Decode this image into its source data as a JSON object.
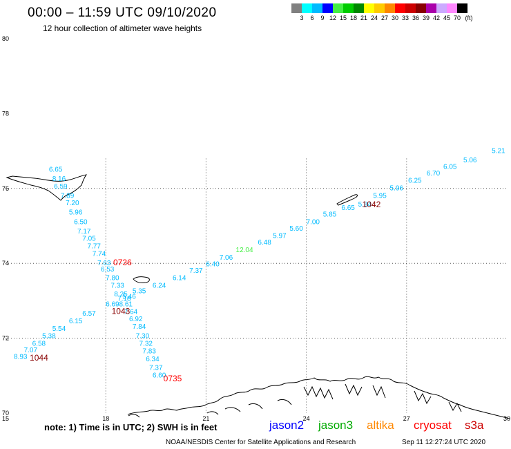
{
  "header": {
    "title": "00:00 – 11:59 UTC 09/10/2020",
    "subtitle": "12 hour collection of altimeter wave heights"
  },
  "color_scale": {
    "labels": [
      "3",
      "6",
      "9",
      "12",
      "15",
      "18",
      "21",
      "24",
      "27",
      "30",
      "33",
      "36",
      "39",
      "42",
      "45",
      "70",
      "(ft)"
    ],
    "colors": [
      "#808080",
      "#00ffff",
      "#00bbff",
      "#0000ff",
      "#44ee44",
      "#00cc00",
      "#008800",
      "#ffff00",
      "#ffcc00",
      "#ff8800",
      "#ff0000",
      "#cc0000",
      "#880000",
      "#aa00aa",
      "#ccaaff",
      "#ff88ff",
      "#000000"
    ]
  },
  "axes": {
    "lon_labels": [
      "15",
      "18",
      "21",
      "24",
      "27",
      "30"
    ],
    "lat_labels": [
      "80",
      "78",
      "76",
      "74",
      "72",
      "70"
    ]
  },
  "chart_data": {
    "type": "scatter",
    "x_axis": "longitude (E)",
    "y_axis": "latitude (N)",
    "xlim": [
      15,
      30
    ],
    "ylim": [
      70,
      80
    ],
    "grid": true,
    "points": [
      {
        "lon": 16.5,
        "lat": 76.45,
        "text": "6.65",
        "color": "#00bbff"
      },
      {
        "lon": 16.6,
        "lat": 76.2,
        "text": "8.16",
        "color": "#00bbff"
      },
      {
        "lon": 16.65,
        "lat": 76.0,
        "text": "6.59",
        "color": "#00bbff"
      },
      {
        "lon": 16.85,
        "lat": 75.75,
        "text": "7.89",
        "color": "#00bbff"
      },
      {
        "lon": 17.0,
        "lat": 75.55,
        "text": "7.20",
        "color": "#00bbff"
      },
      {
        "lon": 17.1,
        "lat": 75.3,
        "text": "5.96",
        "color": "#00bbff"
      },
      {
        "lon": 17.25,
        "lat": 75.05,
        "text": "6.50",
        "color": "#00bbff"
      },
      {
        "lon": 17.35,
        "lat": 74.8,
        "text": "7.17",
        "color": "#00bbff"
      },
      {
        "lon": 17.5,
        "lat": 74.6,
        "text": "7.05",
        "color": "#00bbff"
      },
      {
        "lon": 17.65,
        "lat": 74.4,
        "text": "7.77",
        "color": "#00bbff"
      },
      {
        "lon": 17.8,
        "lat": 74.2,
        "text": "7.74",
        "color": "#00bbff"
      },
      {
        "lon": 17.95,
        "lat": 73.95,
        "text": "7.63",
        "color": "#00bbff"
      },
      {
        "lon": 18.05,
        "lat": 73.78,
        "text": "6.53",
        "color": "#00bbff"
      },
      {
        "lon": 18.2,
        "lat": 73.55,
        "text": "7.80",
        "color": "#00bbff"
      },
      {
        "lon": 18.35,
        "lat": 73.35,
        "text": "7.33",
        "color": "#00bbff"
      },
      {
        "lon": 18.45,
        "lat": 73.12,
        "text": "8.25",
        "color": "#00bbff"
      },
      {
        "lon": 18.55,
        "lat": 73.0,
        "text": "7.18",
        "color": "#00bbff"
      },
      {
        "lon": 18.6,
        "lat": 72.85,
        "text": "8.61",
        "color": "#00bbff"
      },
      {
        "lon": 18.75,
        "lat": 72.65,
        "text": "7.64",
        "color": "#00bbff"
      },
      {
        "lon": 18.9,
        "lat": 72.45,
        "text": "6.92",
        "color": "#00bbff"
      },
      {
        "lon": 19.0,
        "lat": 72.25,
        "text": "7.84",
        "color": "#00bbff"
      },
      {
        "lon": 19.1,
        "lat": 72.0,
        "text": "7.30",
        "color": "#00bbff"
      },
      {
        "lon": 19.2,
        "lat": 71.8,
        "text": "7.32",
        "color": "#00bbff"
      },
      {
        "lon": 19.3,
        "lat": 71.6,
        "text": "7.83",
        "color": "#00bbff"
      },
      {
        "lon": 19.4,
        "lat": 71.38,
        "text": "6.34",
        "color": "#00bbff"
      },
      {
        "lon": 19.5,
        "lat": 71.15,
        "text": "7.37",
        "color": "#00bbff"
      },
      {
        "lon": 19.6,
        "lat": 70.95,
        "text": "6.60",
        "color": "#00bbff"
      },
      {
        "lon": 15.45,
        "lat": 71.45,
        "text": "8.93",
        "color": "#00bbff"
      },
      {
        "lon": 15.75,
        "lat": 71.62,
        "text": "7.07",
        "color": "#00bbff"
      },
      {
        "lon": 16.0,
        "lat": 71.8,
        "text": "6.58",
        "color": "#00bbff"
      },
      {
        "lon": 16.3,
        "lat": 72.0,
        "text": "5.38",
        "color": "#00bbff"
      },
      {
        "lon": 16.6,
        "lat": 72.2,
        "text": "5.54",
        "color": "#00bbff"
      },
      {
        "lon": 17.1,
        "lat": 72.4,
        "text": "6.15",
        "color": "#00bbff"
      },
      {
        "lon": 17.5,
        "lat": 72.6,
        "text": "6.57",
        "color": "#00bbff"
      },
      {
        "lon": 18.2,
        "lat": 72.85,
        "text": "6.69",
        "color": "#00bbff"
      },
      {
        "lon": 18.7,
        "lat": 73.05,
        "text": "5.46",
        "color": "#00bbff"
      },
      {
        "lon": 19.0,
        "lat": 73.2,
        "text": "5.35",
        "color": "#00bbff"
      },
      {
        "lon": 19.6,
        "lat": 73.35,
        "text": "6.24",
        "color": "#00bbff"
      },
      {
        "lon": 20.2,
        "lat": 73.55,
        "text": "6.14",
        "color": "#00bbff"
      },
      {
        "lon": 20.7,
        "lat": 73.75,
        "text": "7.37",
        "color": "#00bbff"
      },
      {
        "lon": 21.2,
        "lat": 73.92,
        "text": "6.40",
        "color": "#00bbff"
      },
      {
        "lon": 21.6,
        "lat": 74.1,
        "text": "7.06",
        "color": "#00bbff"
      },
      {
        "lon": 22.15,
        "lat": 74.3,
        "text": "12.04",
        "color": "#44ee44"
      },
      {
        "lon": 22.75,
        "lat": 74.5,
        "text": "6.48",
        "color": "#00bbff"
      },
      {
        "lon": 23.2,
        "lat": 74.68,
        "text": "5.97",
        "color": "#00bbff"
      },
      {
        "lon": 23.7,
        "lat": 74.87,
        "text": "5.60",
        "color": "#00bbff"
      },
      {
        "lon": 24.2,
        "lat": 75.05,
        "text": "7.00",
        "color": "#00bbff"
      },
      {
        "lon": 24.7,
        "lat": 75.25,
        "text": "5.85",
        "color": "#00bbff"
      },
      {
        "lon": 25.25,
        "lat": 75.42,
        "text": "6.65",
        "color": "#00bbff"
      },
      {
        "lon": 25.75,
        "lat": 75.52,
        "text": "5.84",
        "color": "#00bbff"
      },
      {
        "lon": 26.2,
        "lat": 75.75,
        "text": "5.95",
        "color": "#00bbff"
      },
      {
        "lon": 26.7,
        "lat": 75.95,
        "text": "5.96",
        "color": "#00bbff"
      },
      {
        "lon": 27.25,
        "lat": 76.15,
        "text": "6.25",
        "color": "#00bbff"
      },
      {
        "lon": 27.8,
        "lat": 76.35,
        "text": "6.70",
        "color": "#00bbff"
      },
      {
        "lon": 28.3,
        "lat": 76.52,
        "text": "6.05",
        "color": "#00bbff"
      },
      {
        "lon": 28.9,
        "lat": 76.7,
        "text": "5.06",
        "color": "#00bbff"
      },
      {
        "lon": 29.75,
        "lat": 76.95,
        "text": "5.21",
        "color": "#00bbff"
      }
    ],
    "pass_times": [
      {
        "lon": 18.5,
        "lat": 73.95,
        "text": "0736",
        "color": "#ff0000"
      },
      {
        "lon": 18.45,
        "lat": 72.65,
        "text": "1043",
        "color": "#880000"
      },
      {
        "lon": 16.0,
        "lat": 71.4,
        "text": "1044",
        "color": "#880000"
      },
      {
        "lon": 20.0,
        "lat": 70.85,
        "text": "0735",
        "color": "#ff0000"
      },
      {
        "lon": 25.95,
        "lat": 75.5,
        "text": "1042",
        "color": "#880000"
      }
    ]
  },
  "footer": {
    "note": "note:  1) Time is in UTC;  2) SWH is in feet",
    "credit": "NOAA/NESDIS Center for Satellite Applications and Research",
    "timestamp": "Sep 11 12:27:24 UTC 2020",
    "legend": [
      {
        "label": "jason2",
        "color": "#0000ff"
      },
      {
        "label": "jason3",
        "color": "#00aa00"
      },
      {
        "label": "altika",
        "color": "#ff8800"
      },
      {
        "label": "cryosat",
        "color": "#ff0000"
      },
      {
        "label": "s3a",
        "color": "#cc0000"
      }
    ]
  }
}
